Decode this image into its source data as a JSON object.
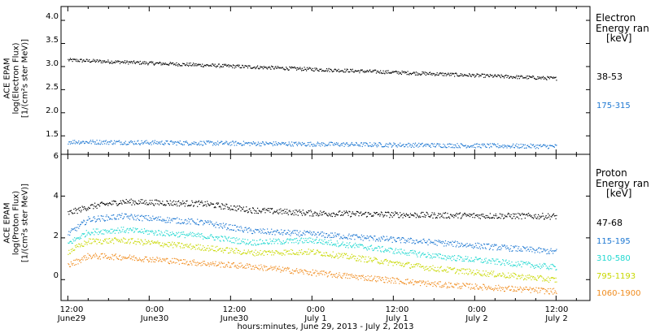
{
  "chart_data": [
    {
      "type": "scatter",
      "panel": "electron",
      "ylabel_lines": [
        "ACE EPAM",
        "log(Electron Flux)",
        "[1/(cm²s ster MeV)]"
      ],
      "ylim": [
        1.1,
        4.3
      ],
      "yticks": [
        1.5,
        2.0,
        2.5,
        3.0,
        3.5,
        4.0
      ],
      "ytick_labels": [
        "1.5",
        "2.0",
        "2.5",
        "3.0",
        "3.5",
        "4.0"
      ],
      "legend": {
        "title_lines": [
          "Electron",
          "Energy ran"
        ],
        "unit": "[keV]"
      },
      "series": [
        {
          "name": "38-53",
          "color": "#000000",
          "x": [
            0,
            72
          ],
          "y": [
            3.15,
            2.75
          ]
        },
        {
          "name": "175-315",
          "color": "#1e78d2",
          "x": [
            0,
            72
          ],
          "y": [
            1.38,
            1.28
          ]
        }
      ]
    },
    {
      "type": "scatter",
      "panel": "proton",
      "ylabel_lines": [
        "ACE EPAM",
        "log(Proton Flux)",
        "[1/(cm²s ster MeV)]"
      ],
      "ylim": [
        -1,
        6
      ],
      "yticks": [
        0,
        2,
        4,
        6
      ],
      "ytick_labels": [
        "0",
        "2",
        "4",
        "6"
      ],
      "legend": {
        "title_lines": [
          "Proton",
          "Energy ran"
        ],
        "unit": "[keV]"
      },
      "series": [
        {
          "name": "47-68",
          "color": "#000000",
          "x": [
            0,
            3,
            8,
            20,
            27,
            36,
            54,
            72
          ],
          "y": [
            3.2,
            3.5,
            3.75,
            3.65,
            3.35,
            3.2,
            3.1,
            3.05
          ]
        },
        {
          "name": "115-195",
          "color": "#1e78d2",
          "x": [
            0,
            3,
            8,
            20,
            27,
            36,
            54,
            72
          ],
          "y": [
            2.2,
            2.9,
            3.05,
            2.75,
            2.35,
            2.2,
            1.8,
            1.35
          ]
        },
        {
          "name": "310-580",
          "color": "#20d8d0",
          "x": [
            0,
            3,
            8,
            20,
            27,
            36,
            54,
            72
          ],
          "y": [
            1.75,
            2.3,
            2.4,
            2.1,
            1.8,
            1.9,
            1.15,
            0.6
          ]
        },
        {
          "name": "795-1193",
          "color": "#c8d800",
          "x": [
            0,
            3,
            8,
            20,
            27,
            36,
            54,
            72
          ],
          "y": [
            1.35,
            1.85,
            1.9,
            1.55,
            1.3,
            1.35,
            0.55,
            0.0
          ]
        },
        {
          "name": "1060-1900",
          "color": "#f08c1e",
          "x": [
            0,
            3,
            8,
            20,
            27,
            36,
            54,
            72
          ],
          "y": [
            0.7,
            1.15,
            1.1,
            0.8,
            0.65,
            0.35,
            -0.2,
            -0.55
          ]
        }
      ]
    }
  ],
  "xaxis": {
    "xlim": [
      -1,
      77
    ],
    "ticks": [
      {
        "x": 0,
        "label1": "12:00",
        "label2": "June29"
      },
      {
        "x": 12,
        "label1": "0:00",
        "label2": "June30"
      },
      {
        "x": 24,
        "label1": "12:00",
        "label2": "June30"
      },
      {
        "x": 36,
        "label1": "0:00",
        "label2": "July 1"
      },
      {
        "x": 48,
        "label1": "12:00",
        "label2": "July 1"
      },
      {
        "x": 60,
        "label1": "0:00",
        "label2": "July 2"
      },
      {
        "x": 72,
        "label1": "12:00",
        "label2": "July 2"
      }
    ],
    "xlabel": "hours:minutes, June 29, 2013 - July  2, 2013"
  }
}
